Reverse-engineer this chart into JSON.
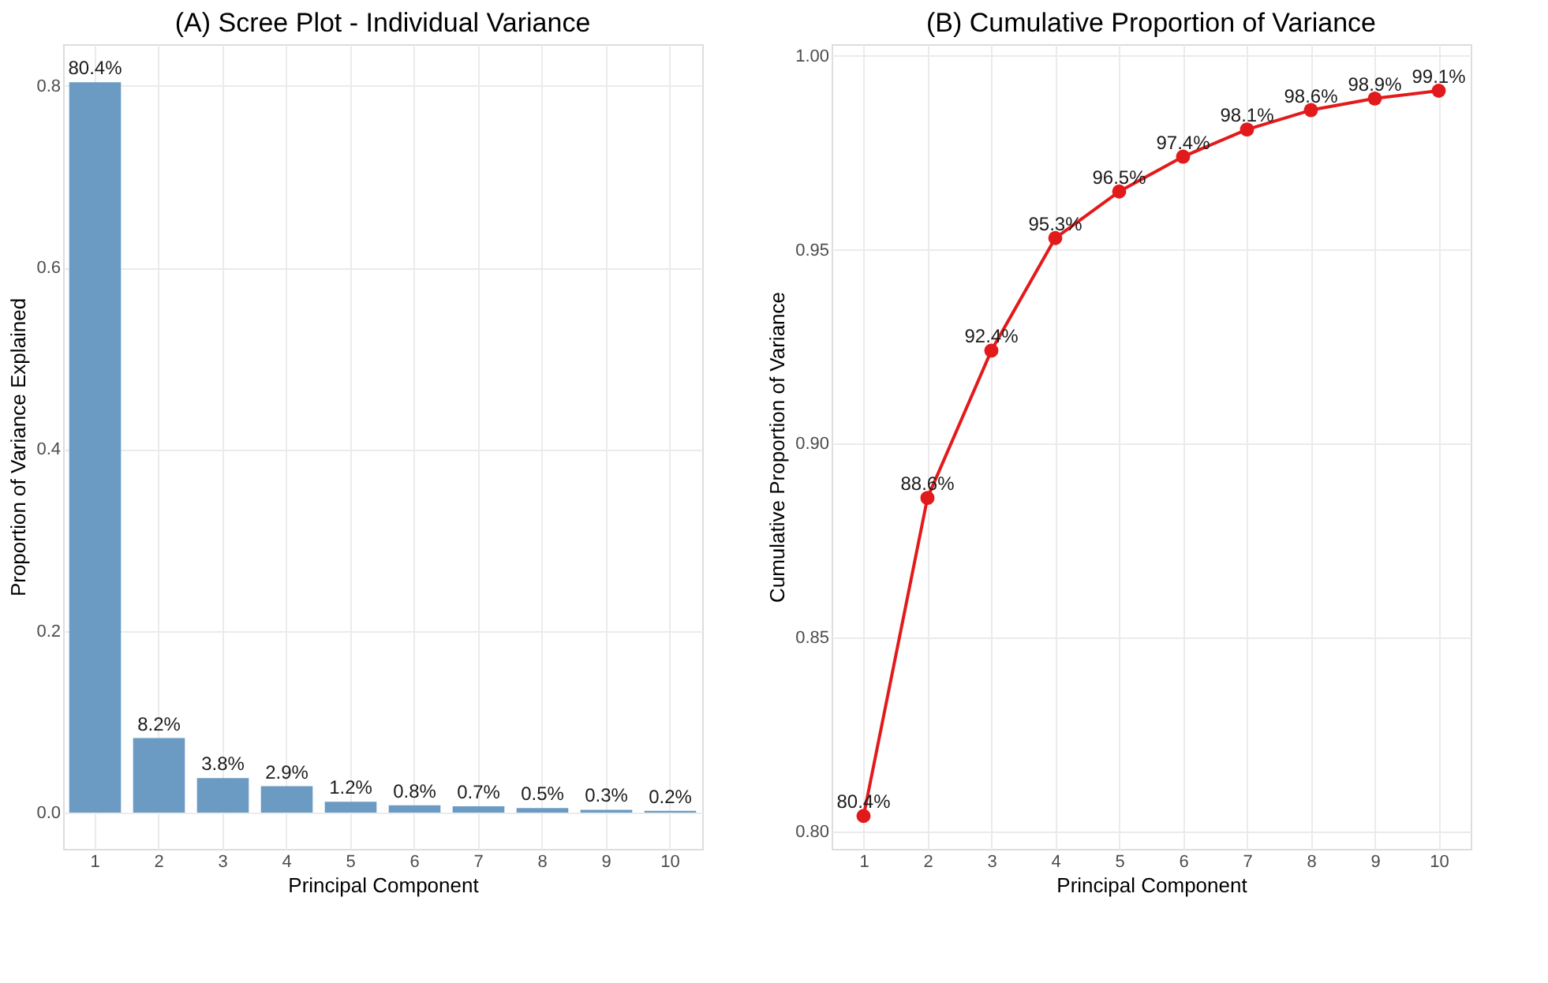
{
  "chart_data": [
    {
      "type": "bar",
      "title": "(A) Scree Plot - Individual Variance",
      "xlabel": "Principal Component",
      "ylabel": "Proportion of Variance Explained",
      "categories": [
        "1",
        "2",
        "3",
        "4",
        "5",
        "6",
        "7",
        "8",
        "9",
        "10"
      ],
      "values": [
        0.804,
        0.082,
        0.038,
        0.029,
        0.012,
        0.008,
        0.007,
        0.005,
        0.003,
        0.002
      ],
      "value_labels": [
        "80.4%",
        "8.2%",
        "3.8%",
        "2.9%",
        "1.2%",
        "0.8%",
        "0.7%",
        "0.5%",
        "0.3%",
        "0.2%"
      ],
      "color": "#6b9bc3",
      "ylim": [
        -0.04,
        0.846
      ],
      "yticks": [
        {
          "value": 0,
          "label": "0.0"
        },
        {
          "value": 0.2,
          "label": "0.2"
        },
        {
          "value": 0.4,
          "label": "0.4"
        },
        {
          "value": 0.6,
          "label": "0.6"
        },
        {
          "value": 0.8,
          "label": "0.8"
        }
      ],
      "grid": true
    },
    {
      "type": "line",
      "title": "(B) Cumulative Proportion of Variance",
      "xlabel": "Principal Component",
      "ylabel": "Cumulative Proportion of Variance",
      "categories": [
        "1",
        "2",
        "3",
        "4",
        "5",
        "6",
        "7",
        "8",
        "9",
        "10"
      ],
      "values": [
        0.804,
        0.886,
        0.924,
        0.953,
        0.965,
        0.974,
        0.981,
        0.986,
        0.989,
        0.991
      ],
      "value_labels": [
        "80.4%",
        "88.6%",
        "92.4%",
        "95.3%",
        "96.5%",
        "97.4%",
        "98.1%",
        "98.6%",
        "98.9%",
        "99.1%"
      ],
      "color": "#e31a1c",
      "marker": "circle",
      "ylim": [
        0.7955,
        1.003
      ],
      "yticks": [
        {
          "value": 0.8,
          "label": "0.80"
        },
        {
          "value": 0.85,
          "label": "0.85"
        },
        {
          "value": 0.9,
          "label": "0.90"
        },
        {
          "value": 0.95,
          "label": "0.95"
        },
        {
          "value": 1.0,
          "label": "1.00"
        }
      ],
      "grid": true
    }
  ]
}
